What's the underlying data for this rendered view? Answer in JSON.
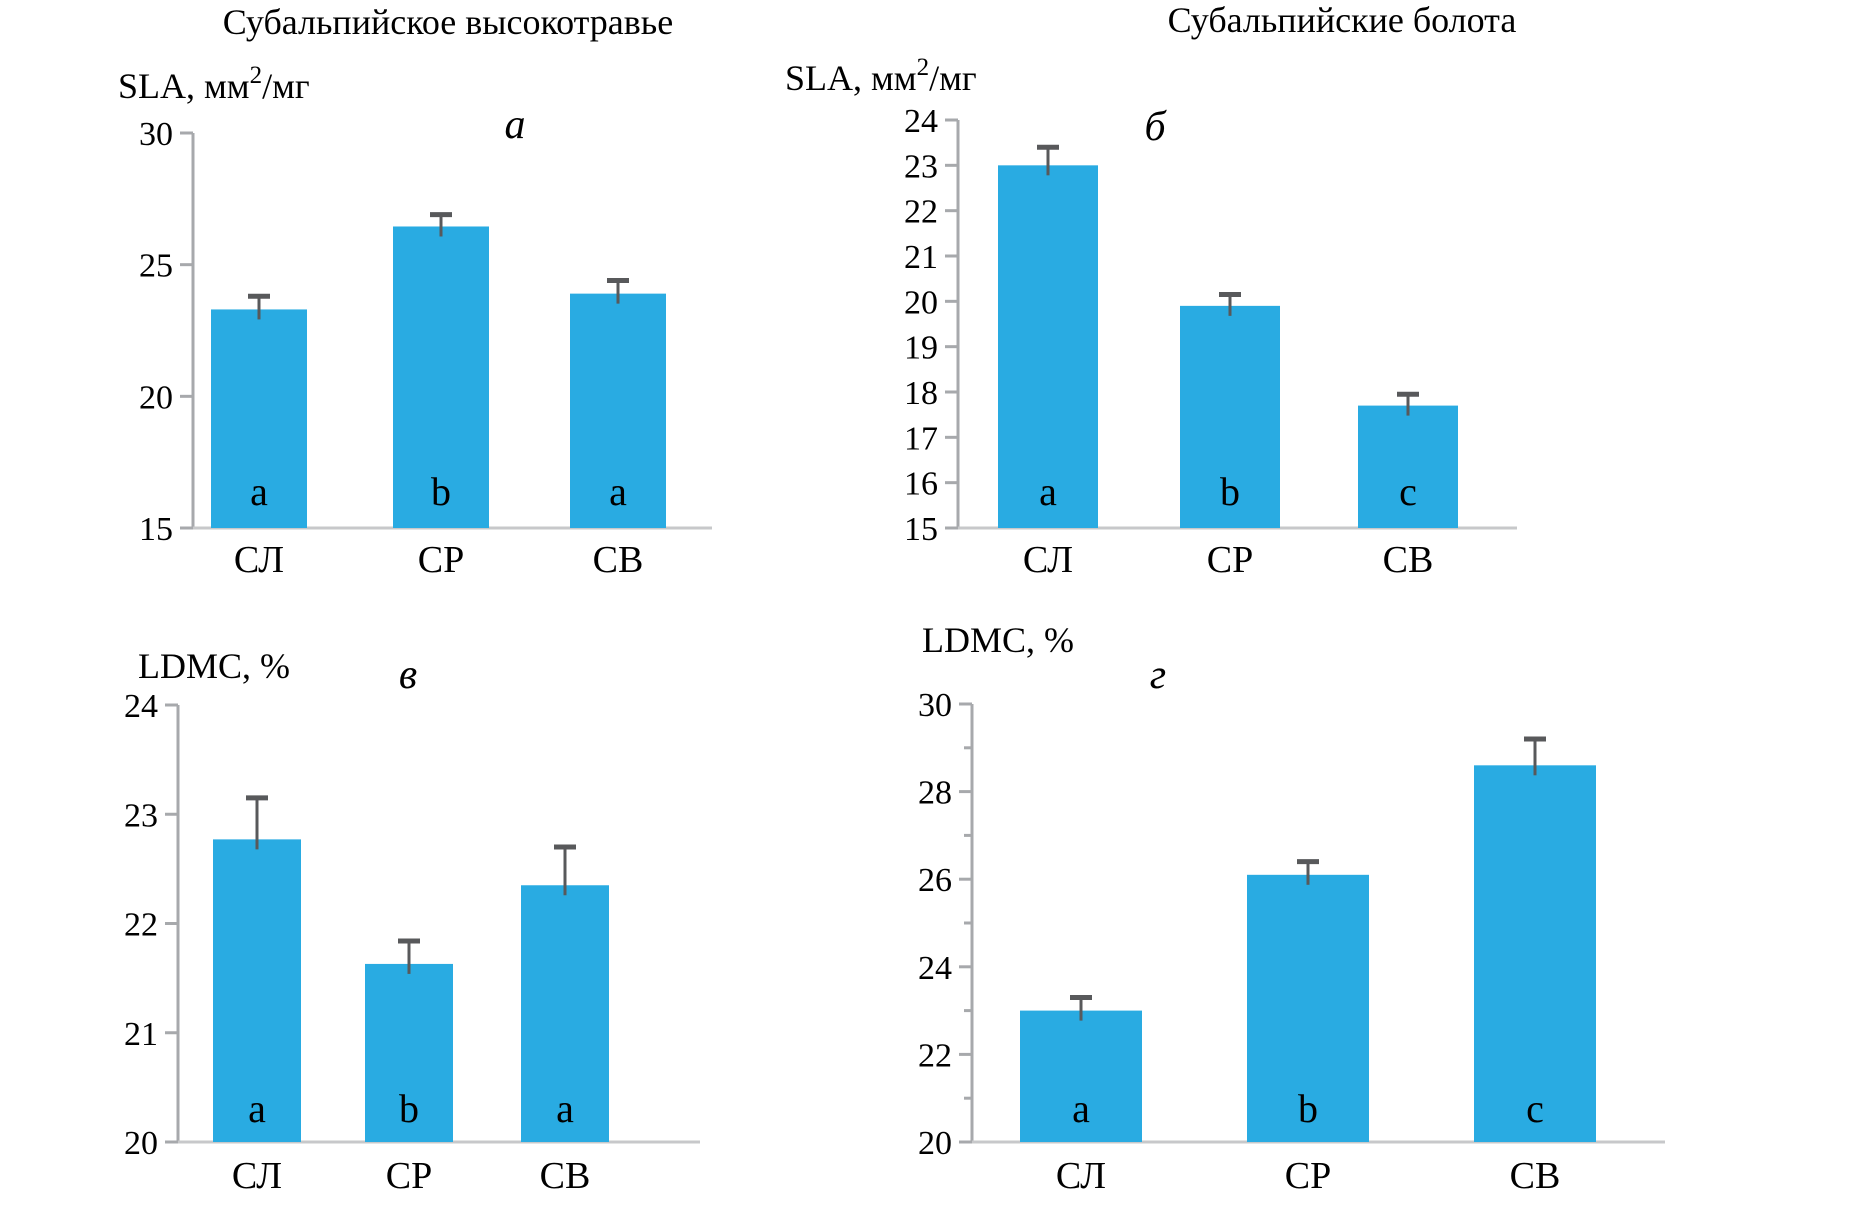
{
  "figure": {
    "background": "#FFFFFF",
    "bar_color": "#29ABE2",
    "error_bar_color": "#58595B",
    "axis_color": "#A7A9AC",
    "baseline_color": "#C7C8CA",
    "text_color": "#000000"
  },
  "chart_data": [
    {
      "id": "a",
      "type": "bar",
      "title": "Субальпийское высокотравье",
      "ylabel": "SLA, мм²/мг",
      "panel_label": "а",
      "categories": [
        "СЛ",
        "СР",
        "СВ"
      ],
      "values": [
        23.3,
        26.45,
        23.9
      ],
      "errors_plus": [
        0.5,
        0.45,
        0.5
      ],
      "significance_letters": [
        "a",
        "b",
        "a"
      ],
      "ylim": [
        15,
        30
      ],
      "yticks": [
        15,
        20,
        25,
        30
      ],
      "minor_yticks": []
    },
    {
      "id": "b",
      "type": "bar",
      "title": "Субальпийские болота",
      "ylabel": "SLA, мм²/мг",
      "panel_label": "б",
      "categories": [
        "СЛ",
        "СР",
        "СВ"
      ],
      "values": [
        23.0,
        19.9,
        17.7
      ],
      "errors_plus": [
        0.4,
        0.25,
        0.25
      ],
      "significance_letters": [
        "a",
        "b",
        "c"
      ],
      "ylim": [
        15,
        24
      ],
      "yticks": [
        15,
        16,
        17,
        18,
        19,
        20,
        21,
        22,
        23,
        24
      ],
      "minor_yticks": []
    },
    {
      "id": "v",
      "type": "bar",
      "title": "",
      "ylabel": "LDMC, %",
      "panel_label": "в",
      "categories": [
        "СЛ",
        "СР",
        "СВ"
      ],
      "values": [
        22.77,
        21.63,
        22.35
      ],
      "errors_plus": [
        0.38,
        0.21,
        0.35
      ],
      "significance_letters": [
        "a",
        "b",
        "a"
      ],
      "ylim": [
        20,
        24
      ],
      "yticks": [
        20,
        21,
        22,
        23,
        24
      ],
      "minor_yticks": []
    },
    {
      "id": "g",
      "type": "bar",
      "title": "",
      "ylabel": "LDMC, %",
      "panel_label": "г",
      "categories": [
        "СЛ",
        "СР",
        "СВ"
      ],
      "values": [
        23.0,
        26.1,
        28.6
      ],
      "errors_plus": [
        0.3,
        0.3,
        0.6
      ],
      "significance_letters": [
        "a",
        "b",
        "c"
      ],
      "ylim": [
        20,
        30
      ],
      "yticks": [
        20,
        22,
        24,
        26,
        28,
        30
      ],
      "minor_yticks": [
        21,
        23,
        25,
        27,
        29
      ]
    }
  ]
}
